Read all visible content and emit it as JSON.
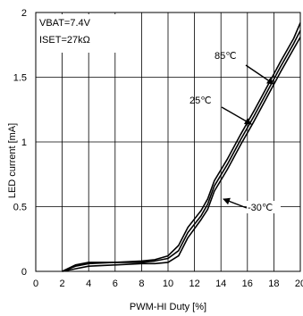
{
  "chart_data": {
    "type": "line",
    "xlabel": "PWM-HI Duty [%]",
    "ylabel": "LED current  [mA]",
    "xlim": [
      0,
      20
    ],
    "ylim": [
      0,
      2
    ],
    "x_ticks": [
      "0",
      "2",
      "4",
      "6",
      "8",
      "10",
      "12",
      "14",
      "16",
      "18",
      "20"
    ],
    "y_ticks": [
      "0",
      "0.5",
      "1",
      "1.5",
      "2"
    ],
    "grid": true,
    "annotations": [
      "VBAT=7.4V",
      "ISET=27kΩ"
    ],
    "series": [
      {
        "name": "85℃",
        "x": [
          2.0,
          3.0,
          4.0,
          6.0,
          8.0,
          9.0,
          10.0,
          10.8,
          11.5,
          12.5,
          13.0,
          13.5,
          14.5,
          15.5,
          16.5,
          17.5,
          18.5,
          19.5,
          20.0
        ],
        "y": [
          0.0,
          0.05,
          0.07,
          0.07,
          0.08,
          0.09,
          0.12,
          0.2,
          0.34,
          0.47,
          0.56,
          0.7,
          0.87,
          1.06,
          1.24,
          1.43,
          1.62,
          1.8,
          1.92
        ]
      },
      {
        "name": "25℃",
        "x": [
          2.0,
          3.0,
          4.0,
          6.0,
          8.0,
          9.0,
          10.0,
          10.8,
          11.5,
          12.5,
          13.0,
          13.5,
          14.5,
          15.5,
          16.5,
          17.5,
          18.5,
          19.5,
          20.0
        ],
        "y": [
          0.0,
          0.04,
          0.06,
          0.07,
          0.07,
          0.08,
          0.1,
          0.16,
          0.3,
          0.43,
          0.52,
          0.66,
          0.83,
          1.02,
          1.2,
          1.39,
          1.58,
          1.76,
          1.86
        ]
      },
      {
        "name": "-30℃",
        "x": [
          2.0,
          3.0,
          4.0,
          6.0,
          8.0,
          9.0,
          10.0,
          10.8,
          11.5,
          12.5,
          13.0,
          13.5,
          14.5,
          15.5,
          16.5,
          17.5,
          18.5,
          19.5,
          20.0
        ],
        "y": [
          0.0,
          0.02,
          0.04,
          0.05,
          0.06,
          0.06,
          0.07,
          0.12,
          0.26,
          0.4,
          0.48,
          0.62,
          0.79,
          0.98,
          1.16,
          1.35,
          1.54,
          1.72,
          1.81
        ]
      }
    ]
  }
}
